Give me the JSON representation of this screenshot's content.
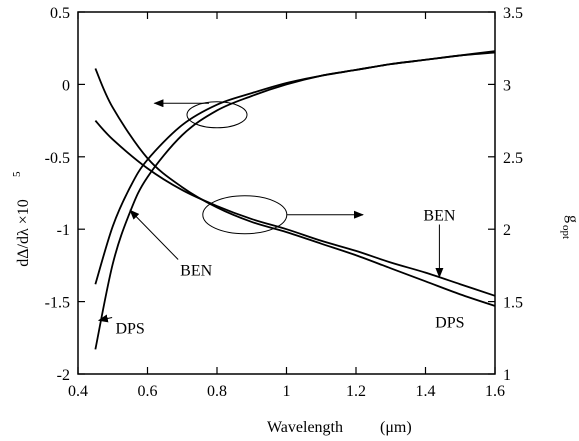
{
  "chart_data": {
    "type": "line",
    "xlabel": "Wavelength",
    "xlabel_unit": "(μm)",
    "ylabel_left": "dΔ/dλ  ×10",
    "ylabel_left_exp": "5",
    "ylabel_right": "g",
    "ylabel_right_sub": "opt",
    "xlim": [
      0.4,
      1.6
    ],
    "ylim_left": [
      -2,
      0.5
    ],
    "ylim_right": [
      1,
      3.5
    ],
    "x_ticks": [
      "0.4",
      "0.6",
      "0.8",
      "1",
      "1.2",
      "1.4",
      "1.6"
    ],
    "y_left_ticks": [
      "0.5",
      "0",
      "-0.5",
      "-1",
      "-1.5",
      "-2"
    ],
    "y_right_ticks": [
      "3.5",
      "3",
      "2.5",
      "2",
      "1.5",
      "1"
    ],
    "series": [
      {
        "name": "BEN",
        "axis": "left",
        "x": [
          0.45,
          0.5,
          0.55,
          0.6,
          0.7,
          0.8,
          0.9,
          1.0,
          1.1,
          1.2,
          1.3,
          1.4,
          1.5,
          1.6
        ],
        "y": [
          -1.38,
          -0.98,
          -0.71,
          -0.52,
          -0.28,
          -0.14,
          -0.06,
          0.01,
          0.06,
          0.1,
          0.14,
          0.17,
          0.2,
          0.22
        ]
      },
      {
        "name": "DPS",
        "axis": "left",
        "x": [
          0.45,
          0.5,
          0.55,
          0.6,
          0.7,
          0.8,
          0.9,
          1.0,
          1.1,
          1.2,
          1.3,
          1.4,
          1.5,
          1.6
        ],
        "y": [
          -1.83,
          -1.24,
          -0.88,
          -0.64,
          -0.35,
          -0.18,
          -0.08,
          0.0,
          0.06,
          0.1,
          0.14,
          0.17,
          0.2,
          0.23
        ]
      },
      {
        "name": "BEN",
        "axis": "right",
        "x": [
          0.45,
          0.5,
          0.6,
          0.7,
          0.8,
          0.9,
          1.0,
          1.1,
          1.2,
          1.3,
          1.4,
          1.5,
          1.6
        ],
        "y": [
          2.75,
          2.62,
          2.42,
          2.27,
          2.16,
          2.07,
          2.0,
          1.92,
          1.85,
          1.77,
          1.7,
          1.62,
          1.54
        ]
      },
      {
        "name": "DPS",
        "axis": "right",
        "x": [
          0.45,
          0.5,
          0.6,
          0.7,
          0.8,
          0.9,
          1.0,
          1.1,
          1.2,
          1.3,
          1.4,
          1.5,
          1.6
        ],
        "y": [
          3.11,
          2.84,
          2.49,
          2.29,
          2.15,
          2.05,
          1.98,
          1.9,
          1.82,
          1.73,
          1.64,
          1.55,
          1.47
        ]
      }
    ],
    "labels": [
      {
        "text": "BEN",
        "x": 0.74,
        "y_left": -1.32,
        "arrow_to": [
          0.55,
          -0.87
        ]
      },
      {
        "text": "DPS",
        "x": 0.55,
        "y_left": -1.72,
        "arrow_to": [
          0.46,
          -1.63
        ]
      },
      {
        "text": "BEN",
        "x": 1.44,
        "y_left": -0.94,
        "arrow_to": [
          1.44,
          -1.33
        ]
      },
      {
        "text": "DPS",
        "x": 1.47,
        "y_left": -1.68,
        "arrow_to": null
      }
    ],
    "annotations": [
      {
        "shape": "ellipse",
        "center": [
          0.8,
          -0.21
        ],
        "arrow_to": [
          0.62,
          -0.13
        ],
        "meaning": "left axis"
      },
      {
        "shape": "ellipse",
        "center": [
          0.88,
          -0.9
        ],
        "arrow_to": [
          1.22,
          -0.9
        ],
        "meaning": "right axis"
      }
    ]
  }
}
